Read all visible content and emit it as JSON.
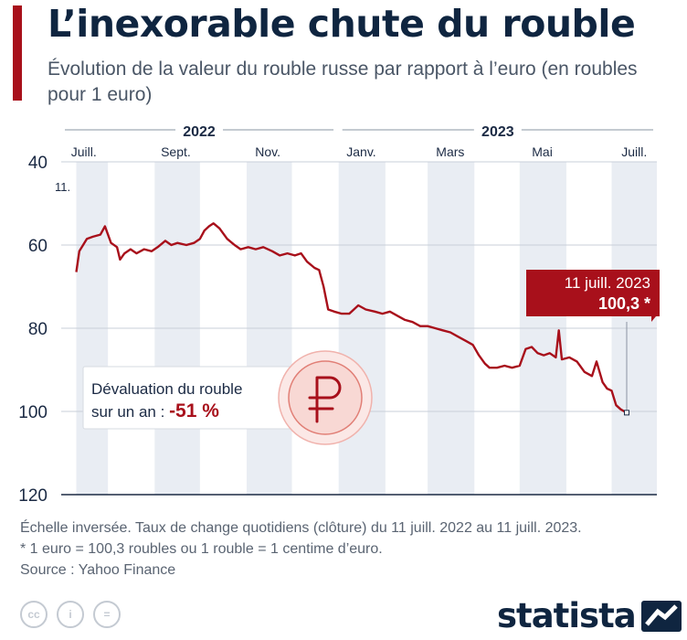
{
  "header": {
    "title": "L’inexorable chute du rouble",
    "subtitle": "Évolution de la valeur du rouble russe par rapport à l’euro (en roubles pour 1 euro)"
  },
  "colors": {
    "accent": "#a8101b",
    "navy": "#0f2540",
    "band": "#e9edf3"
  },
  "chart_data": {
    "type": "line",
    "title": "L’inexorable chute du rouble",
    "y_inverted": true,
    "ylim": [
      40,
      120
    ],
    "y_ticks": [
      "40",
      "60",
      "80",
      "100",
      "120"
    ],
    "year_labels": [
      {
        "label": "2022",
        "from": "2022-07-01",
        "to": "2022-12-31"
      },
      {
        "label": "2023",
        "from": "2023-01-01",
        "to": "2023-07-31"
      }
    ],
    "month_labels": [
      {
        "label": "Juill.",
        "date": "2022-07-16"
      },
      {
        "label": "Sept.",
        "date": "2022-09-15"
      },
      {
        "label": "Nov.",
        "date": "2022-11-15"
      },
      {
        "label": "Janv.",
        "date": "2023-01-16"
      },
      {
        "label": "Mars",
        "date": "2023-03-16"
      },
      {
        "label": "Mai",
        "date": "2023-05-16"
      },
      {
        "label": "Juill.",
        "date": "2023-07-16"
      }
    ],
    "start_label": "11.",
    "series": [
      {
        "points": [
          [
            "2022-07-11",
            66.5
          ],
          [
            "2022-07-13",
            61.5
          ],
          [
            "2022-07-18",
            58.5
          ],
          [
            "2022-07-22",
            58.0
          ],
          [
            "2022-07-27",
            57.5
          ],
          [
            "2022-07-30",
            55.5
          ],
          [
            "2022-08-03",
            59.5
          ],
          [
            "2022-08-07",
            60.5
          ],
          [
            "2022-08-09",
            63.5
          ],
          [
            "2022-08-12",
            62.0
          ],
          [
            "2022-08-16",
            61.0
          ],
          [
            "2022-08-20",
            62.0
          ],
          [
            "2022-08-25",
            61.0
          ],
          [
            "2022-08-30",
            61.5
          ],
          [
            "2022-09-03",
            60.5
          ],
          [
            "2022-09-08",
            59.0
          ],
          [
            "2022-09-12",
            60.0
          ],
          [
            "2022-09-16",
            59.5
          ],
          [
            "2022-09-22",
            60.0
          ],
          [
            "2022-09-27",
            59.5
          ],
          [
            "2022-10-01",
            58.5
          ],
          [
            "2022-10-04",
            56.5
          ],
          [
            "2022-10-07",
            55.5
          ],
          [
            "2022-10-10",
            54.8
          ],
          [
            "2022-10-14",
            56.0
          ],
          [
            "2022-10-19",
            58.5
          ],
          [
            "2022-10-24",
            60.0
          ],
          [
            "2022-10-28",
            61.0
          ],
          [
            "2022-11-02",
            60.5
          ],
          [
            "2022-11-07",
            61.0
          ],
          [
            "2022-11-12",
            60.5
          ],
          [
            "2022-11-18",
            61.5
          ],
          [
            "2022-11-23",
            62.5
          ],
          [
            "2022-11-28",
            62.0
          ],
          [
            "2022-12-03",
            62.5
          ],
          [
            "2022-12-07",
            62.0
          ],
          [
            "2022-12-11",
            64.0
          ],
          [
            "2022-12-16",
            65.5
          ],
          [
            "2022-12-19",
            66.0
          ],
          [
            "2022-12-22",
            70.0
          ],
          [
            "2022-12-25",
            75.5
          ],
          [
            "2022-12-29",
            76.0
          ],
          [
            "2023-01-03",
            76.5
          ],
          [
            "2023-01-08",
            76.5
          ],
          [
            "2023-01-14",
            74.5
          ],
          [
            "2023-01-19",
            75.5
          ],
          [
            "2023-01-25",
            76.0
          ],
          [
            "2023-01-30",
            76.5
          ],
          [
            "2023-02-04",
            76.0
          ],
          [
            "2023-02-09",
            77.0
          ],
          [
            "2023-02-14",
            78.0
          ],
          [
            "2023-02-19",
            78.5
          ],
          [
            "2023-02-24",
            79.5
          ],
          [
            "2023-03-01",
            79.5
          ],
          [
            "2023-03-06",
            80.0
          ],
          [
            "2023-03-11",
            80.5
          ],
          [
            "2023-03-16",
            81.0
          ],
          [
            "2023-03-21",
            82.0
          ],
          [
            "2023-03-26",
            83.0
          ],
          [
            "2023-03-31",
            84.0
          ],
          [
            "2023-04-04",
            86.5
          ],
          [
            "2023-04-08",
            88.5
          ],
          [
            "2023-04-11",
            89.5
          ],
          [
            "2023-04-16",
            89.5
          ],
          [
            "2023-04-21",
            89.0
          ],
          [
            "2023-04-26",
            89.5
          ],
          [
            "2023-05-01",
            89.0
          ],
          [
            "2023-05-05",
            85.0
          ],
          [
            "2023-05-09",
            84.5
          ],
          [
            "2023-05-13",
            86.0
          ],
          [
            "2023-05-17",
            86.5
          ],
          [
            "2023-05-21",
            86.0
          ],
          [
            "2023-05-25",
            87.0
          ],
          [
            "2023-05-27",
            80.5
          ],
          [
            "2023-05-29",
            87.5
          ],
          [
            "2023-06-03",
            87.0
          ],
          [
            "2023-06-08",
            88.0
          ],
          [
            "2023-06-13",
            90.5
          ],
          [
            "2023-06-18",
            91.5
          ],
          [
            "2023-06-21",
            88.0
          ],
          [
            "2023-06-25",
            93.0
          ],
          [
            "2023-06-28",
            94.5
          ],
          [
            "2023-07-01",
            95.0
          ],
          [
            "2023-07-04",
            98.5
          ],
          [
            "2023-07-07",
            99.5
          ],
          [
            "2023-07-11",
            100.3
          ]
        ]
      }
    ],
    "annotation_date": "11 juill. 2023",
    "annotation_value": "100,3 *",
    "devaluation": {
      "text_line1": "Dévaluation du rouble",
      "text_line2": "sur un an : ",
      "value": "-51 %"
    }
  },
  "footnotes": {
    "line1": "Échelle inversée. Taux de change quotidiens (clôture) du 11 juill. 2022 au 11 juill. 2023.",
    "line2": "* 1 euro = 100,3 roubles ou 1 rouble = 1 centime d’euro.",
    "source": "Source : Yahoo Finance"
  },
  "branding": {
    "license_icons": [
      "cc",
      "i",
      "="
    ],
    "logo": "statista"
  }
}
